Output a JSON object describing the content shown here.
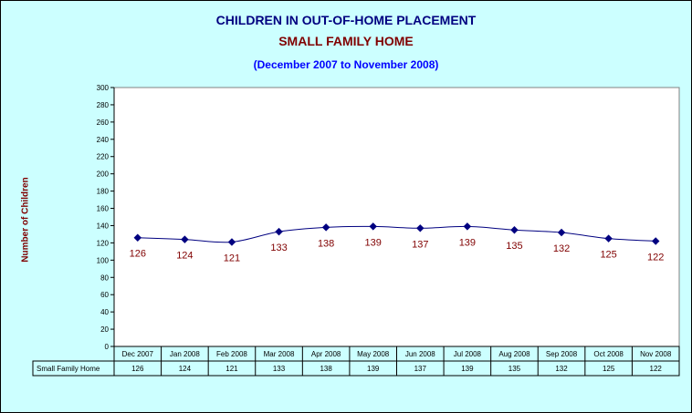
{
  "title": "CHILDREN IN OUT-OF-HOME PLACEMENT",
  "subtitle": "SMALL FAMILY HOME",
  "date_range": "(December 2007 to November 2008)",
  "colors": {
    "background": "#ccffff",
    "plot_area": "#ffffff",
    "line": "#000080",
    "title": "#000080",
    "subtitle": "#800000",
    "date_range": "#0000ff",
    "data_labels": "#800000"
  },
  "chart_data": {
    "type": "line",
    "title": "CHILDREN IN OUT-OF-HOME PLACEMENT",
    "subtitle": "SMALL FAMILY HOME",
    "xlabel": "",
    "ylabel": "Number of Children",
    "ylim": [
      0,
      300
    ],
    "ytick_step": 20,
    "grid": false,
    "legend": "data table below chart",
    "categories": [
      "Dec 2007",
      "Jan 2008",
      "Feb 2008",
      "Mar 2008",
      "Apr 2008",
      "May 2008",
      "Jun 2008",
      "Jul 2008",
      "Aug 2008",
      "Sep 2008",
      "Oct 2008",
      "Nov 2008"
    ],
    "series": [
      {
        "name": "Small Family Home",
        "values": [
          126,
          124,
          121,
          133,
          138,
          139,
          137,
          139,
          135,
          132,
          125,
          122
        ]
      }
    ]
  }
}
